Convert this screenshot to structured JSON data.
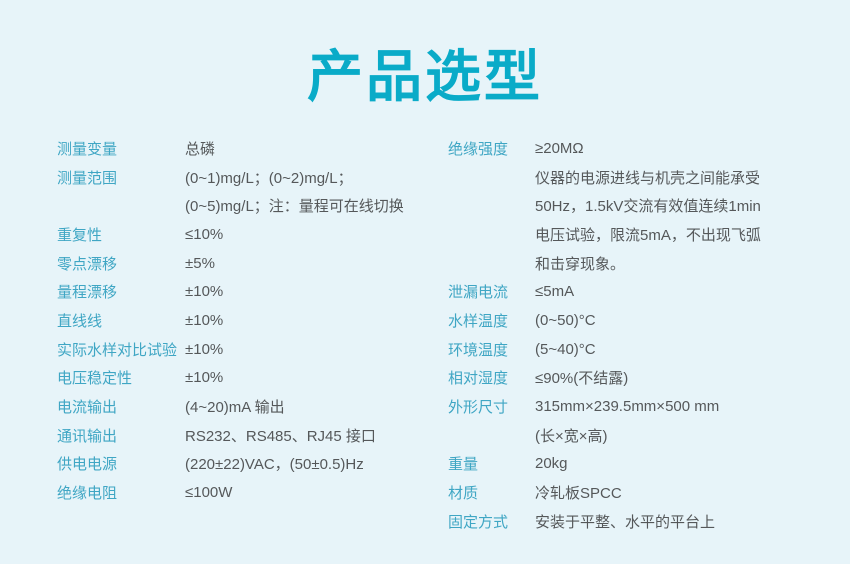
{
  "page": {
    "title": "产品选型",
    "colors": {
      "background": "#e7f4f9",
      "accent": "#0aabc8",
      "label": "#3fa6c4",
      "value": "#55585a"
    }
  },
  "left_column": {
    "rows": [
      {
        "label": "测量变量",
        "value": "总磷"
      },
      {
        "label": "测量范围",
        "value": "(0~1)mg/L；(0~2)mg/L；"
      },
      {
        "label": "",
        "value": "(0~5)mg/L；注：量程可在线切换"
      },
      {
        "label": "重复性",
        "value": "≤10%"
      },
      {
        "label": "零点漂移",
        "value": "±5%"
      },
      {
        "label": "量程漂移",
        "value": "±10%"
      },
      {
        "label": "直线线",
        "value": "±10%"
      },
      {
        "label": "实际水样对比试验",
        "value": "±10%"
      },
      {
        "label": "电压稳定性",
        "value": "±10%"
      },
      {
        "label": "电流输出",
        "value": "(4~20)mA 输出"
      },
      {
        "label": "通讯输出",
        "value": "RS232、RS485、RJ45 接口"
      },
      {
        "label": "供电电源",
        "value": "(220±22)VAC，(50±0.5)Hz"
      },
      {
        "label": "绝缘电阻",
        "value": "≤100W"
      }
    ]
  },
  "right_column": {
    "rows": [
      {
        "label": "绝缘强度",
        "value": "≥20MΩ"
      },
      {
        "label": "",
        "value": "仪器的电源进线与机壳之间能承受"
      },
      {
        "label": "",
        "value": "50Hz，1.5kV交流有效值连续1min"
      },
      {
        "label": "",
        "value": "电压试验，限流5mA，不出现飞弧"
      },
      {
        "label": "",
        "value": "和击穿现象。"
      },
      {
        "label": "泄漏电流",
        "value": "≤5mA"
      },
      {
        "label": "水样温度",
        "value": "(0~50)°C"
      },
      {
        "label": "环境温度",
        "value": "(5~40)°C"
      },
      {
        "label": "相对湿度",
        "value": "≤90%(不结露)"
      },
      {
        "label": "外形尺寸",
        "value": "315mm×239.5mm×500 mm"
      },
      {
        "label": "",
        "value": "(长×宽×高)"
      },
      {
        "label": "重量",
        "value": "20kg"
      },
      {
        "label": "材质",
        "value": "冷轧板SPCC"
      },
      {
        "label": "固定方式",
        "value": "安装于平整、水平的平台上"
      }
    ]
  }
}
